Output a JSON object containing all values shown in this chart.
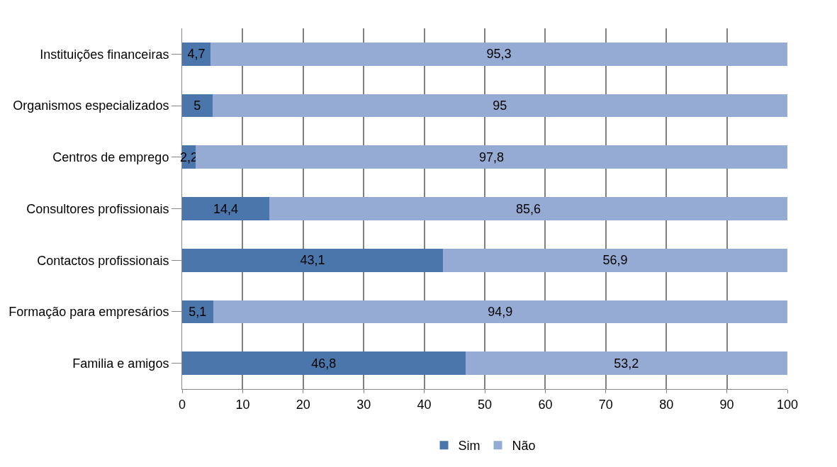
{
  "chart_data": {
    "type": "bar",
    "orientation": "horizontal",
    "stacked": true,
    "categories": [
      "Instituições financeiras",
      "Organismos especializados",
      "Centros de emprego",
      "Consultores profissionais",
      "Contactos profissionais",
      "Formação para empresários",
      "Familia e amigos"
    ],
    "series": [
      {
        "name": "Sim",
        "color": "#4a76ab",
        "values": [
          4.7,
          5,
          2.2,
          14.4,
          43.1,
          5.1,
          46.8
        ],
        "value_labels": [
          "4,7",
          "5",
          "2,2",
          "14,4",
          "43,1",
          "5,1",
          "46,8"
        ]
      },
      {
        "name": "Não",
        "color": "#95abd4",
        "values": [
          95.3,
          95,
          97.8,
          85.6,
          56.9,
          94.9,
          53.2
        ],
        "value_labels": [
          "95,3",
          "95",
          "97,8",
          "85,6",
          "56,9",
          "94,9",
          "53,2"
        ]
      }
    ],
    "xlim": [
      0,
      100
    ],
    "xticks": [
      0,
      10,
      20,
      30,
      40,
      50,
      60,
      70,
      80,
      90,
      100
    ],
    "grid": "x",
    "legend": "bottom"
  }
}
